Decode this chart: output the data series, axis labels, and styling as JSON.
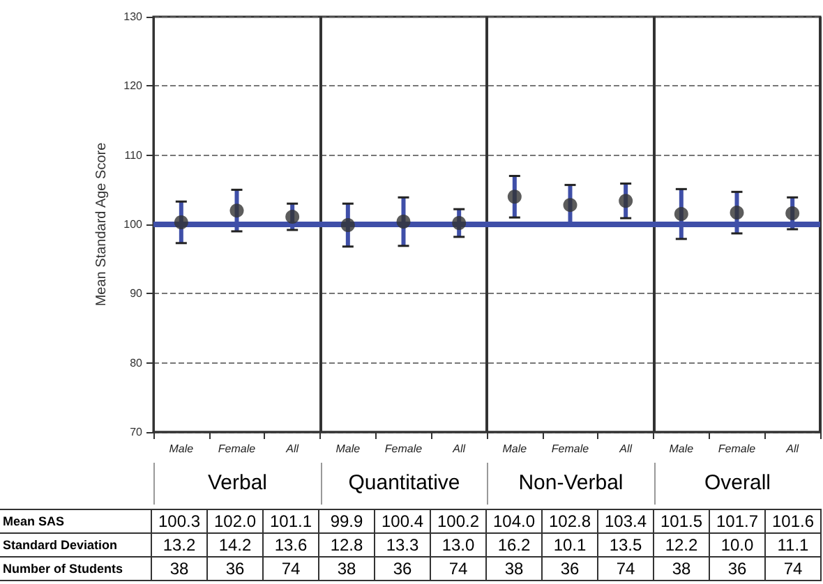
{
  "chart_data": {
    "type": "scatter",
    "ylabel": "Mean Standard Age Score",
    "categories": [
      "Male",
      "Female",
      "All",
      "Male",
      "Female",
      "All",
      "Male",
      "Female",
      "All",
      "Male",
      "Female",
      "All"
    ],
    "series": [
      {
        "color": "#333333",
        "values": [
          100.3,
          102.0,
          101.1,
          99.9,
          100.4,
          100.2,
          104.0,
          102.8,
          103.4,
          101.5,
          101.7,
          101.6
        ],
        "value_labels": [
          "100.3",
          "102.0",
          "101.1",
          "99.9",
          "100.4",
          "100.2",
          "104.0",
          "102.8",
          "103.4",
          "101.5",
          "101.7",
          "101.6"
        ],
        "errors": [
          3.0,
          3.0,
          1.9,
          3.1,
          3.5,
          2.0,
          3.0,
          2.9,
          2.5,
          3.6,
          3.0,
          2.3
        ]
      }
    ],
    "ylim": [
      70,
      130
    ],
    "yticks": [
      70,
      80,
      90,
      100,
      110,
      120,
      130
    ],
    "grid": "y",
    "marker": "circle",
    "ref_lines": [
      {
        "axis": "y",
        "value": 100,
        "color": "#3f4fa8",
        "line_style": "solid"
      }
    ],
    "annotations": [
      "Verbal",
      "Quantitative",
      "Non-Verbal",
      "Overall",
      "Mean SAS",
      "Standard Deviation",
      "Number of Students",
      "13.2",
      "14.2",
      "13.6",
      "12.8",
      "13.3",
      "13.0",
      "16.2",
      "10.1",
      "13.5",
      "12.2",
      "10.0",
      "11.1",
      "38",
      "36",
      "74",
      "38",
      "36",
      "74",
      "38",
      "36",
      "74",
      "38",
      "36",
      "74"
    ]
  }
}
